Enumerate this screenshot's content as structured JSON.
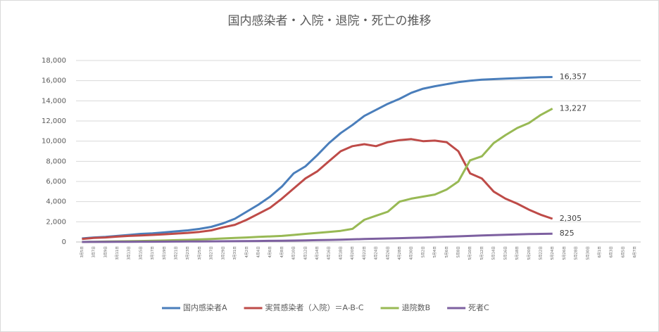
{
  "chart_data": {
    "type": "line",
    "title": "国内感染者・入院・退院・死亡の推移",
    "categories": [
      "3月5日",
      "3月7日",
      "3月9日",
      "3月11日",
      "3月13日",
      "3月15日",
      "3月17日",
      "3月19日",
      "3月21日",
      "3月23日",
      "3月25日",
      "3月27日",
      "3月29日",
      "3月31日",
      "4月2日",
      "4月4日",
      "4月6日",
      "4月8日",
      "4月10日",
      "4月12日",
      "4月14日",
      "4月16日",
      "4月18日",
      "4月20日",
      "4月22日",
      "4月24日",
      "4月26日",
      "4月28日",
      "4月30日",
      "5月2日",
      "5月4日",
      "5月6日",
      "5月8日",
      "5月10日",
      "5月12日",
      "5月14日",
      "5月16日",
      "5月18日",
      "5月20日",
      "5月22日",
      "5月24日",
      "5月26日",
      "5月28日",
      "5月30日",
      "6月1日",
      "6月3日",
      "6月5日",
      "6月7日"
    ],
    "series": [
      {
        "name": "国内感染者A",
        "color": "#4a7ebb",
        "values": [
          350,
          450,
          500,
          600,
          700,
          800,
          850,
          950,
          1050,
          1150,
          1300,
          1500,
          1850,
          2300,
          3000,
          3700,
          4500,
          5500,
          6800,
          7500,
          8600,
          9800,
          10800,
          11600,
          12500,
          13100,
          13700,
          14200,
          14800,
          15200,
          15450,
          15650,
          15850,
          16000,
          16100,
          16150,
          16200,
          16250,
          16300,
          16340,
          16357,
          null,
          null,
          null,
          null,
          null,
          null,
          null
        ],
        "value_labels": [
          null,
          null,
          null,
          null,
          null,
          null,
          null,
          null,
          null,
          null,
          null,
          null,
          null,
          null,
          null,
          null,
          null,
          null,
          null,
          null,
          null,
          null,
          null,
          null,
          null,
          null,
          null,
          null,
          null,
          null,
          null,
          null,
          null,
          null,
          null,
          null,
          null,
          null,
          null,
          null,
          "16,357",
          null,
          null,
          null,
          null,
          null,
          null,
          null
        ]
      },
      {
        "name": "実質感染者（入院）＝A-B-C",
        "color": "#be4b48",
        "values": [
          300,
          400,
          450,
          530,
          600,
          650,
          700,
          760,
          830,
          900,
          1000,
          1150,
          1450,
          1700,
          2200,
          2800,
          3400,
          4300,
          5300,
          6300,
          7000,
          8000,
          9000,
          9500,
          9700,
          9500,
          9900,
          10100,
          10200,
          10000,
          10050,
          9900,
          9000,
          6800,
          6300,
          5000,
          4300,
          3800,
          3200,
          2700,
          2305,
          null,
          null,
          null,
          null,
          null,
          null,
          null
        ],
        "value_labels": [
          null,
          null,
          null,
          null,
          null,
          null,
          null,
          null,
          null,
          null,
          null,
          null,
          null,
          null,
          null,
          null,
          null,
          null,
          null,
          null,
          null,
          null,
          null,
          null,
          null,
          null,
          null,
          null,
          null,
          null,
          null,
          null,
          null,
          null,
          null,
          null,
          null,
          null,
          null,
          null,
          "2,305",
          null,
          null,
          null,
          null,
          null,
          null,
          null
        ]
      },
      {
        "name": "退院数B",
        "color": "#98b954",
        "values": [
          0,
          20,
          40,
          60,
          80,
          100,
          120,
          150,
          180,
          210,
          250,
          300,
          350,
          400,
          450,
          500,
          550,
          600,
          700,
          800,
          900,
          1000,
          1100,
          1300,
          2200,
          2600,
          3000,
          4000,
          4300,
          4500,
          4700,
          5200,
          6000,
          8100,
          8500,
          9800,
          10600,
          11300,
          11800,
          12600,
          13227,
          null,
          null,
          null,
          null,
          null,
          null,
          null
        ],
        "value_labels": [
          null,
          null,
          null,
          null,
          null,
          null,
          null,
          null,
          null,
          null,
          null,
          null,
          null,
          null,
          null,
          null,
          null,
          null,
          null,
          null,
          null,
          null,
          null,
          null,
          null,
          null,
          null,
          null,
          null,
          null,
          null,
          null,
          null,
          null,
          null,
          null,
          null,
          null,
          null,
          null,
          "13,227",
          null,
          null,
          null,
          null,
          null,
          null,
          null
        ]
      },
      {
        "name": "死者C",
        "color": "#7d60a0",
        "values": [
          0,
          5,
          10,
          15,
          20,
          25,
          30,
          35,
          40,
          50,
          55,
          60,
          70,
          80,
          90,
          100,
          110,
          120,
          140,
          160,
          180,
          200,
          230,
          260,
          290,
          320,
          350,
          380,
          410,
          440,
          480,
          520,
          560,
          600,
          640,
          680,
          720,
          750,
          780,
          800,
          825,
          null,
          null,
          null,
          null,
          null,
          null,
          null
        ],
        "value_labels": [
          null,
          null,
          null,
          null,
          null,
          null,
          null,
          null,
          null,
          null,
          null,
          null,
          null,
          null,
          null,
          null,
          null,
          null,
          null,
          null,
          null,
          null,
          null,
          null,
          null,
          null,
          null,
          null,
          null,
          null,
          null,
          null,
          null,
          null,
          null,
          null,
          null,
          null,
          null,
          null,
          "825",
          null,
          null,
          null,
          null,
          null,
          null,
          null
        ]
      }
    ],
    "ylim": [
      0,
      18000
    ],
    "yticks": [
      0,
      {
        "value": 2000,
        "label": "2,000"
      },
      {
        "value": 4000,
        "label": "4,000"
      },
      {
        "value": 6000,
        "label": "6,000"
      },
      {
        "value": 8000,
        "label": "8,000"
      },
      {
        "value": 10000,
        "label": "10,000"
      },
      {
        "value": 12000,
        "label": "12,000"
      },
      {
        "value": 14000,
        "label": "14,000"
      },
      {
        "value": 16000,
        "label": "16,000"
      },
      {
        "value": 18000,
        "label": "18,000"
      }
    ],
    "grid": true,
    "legend": "bottom"
  }
}
